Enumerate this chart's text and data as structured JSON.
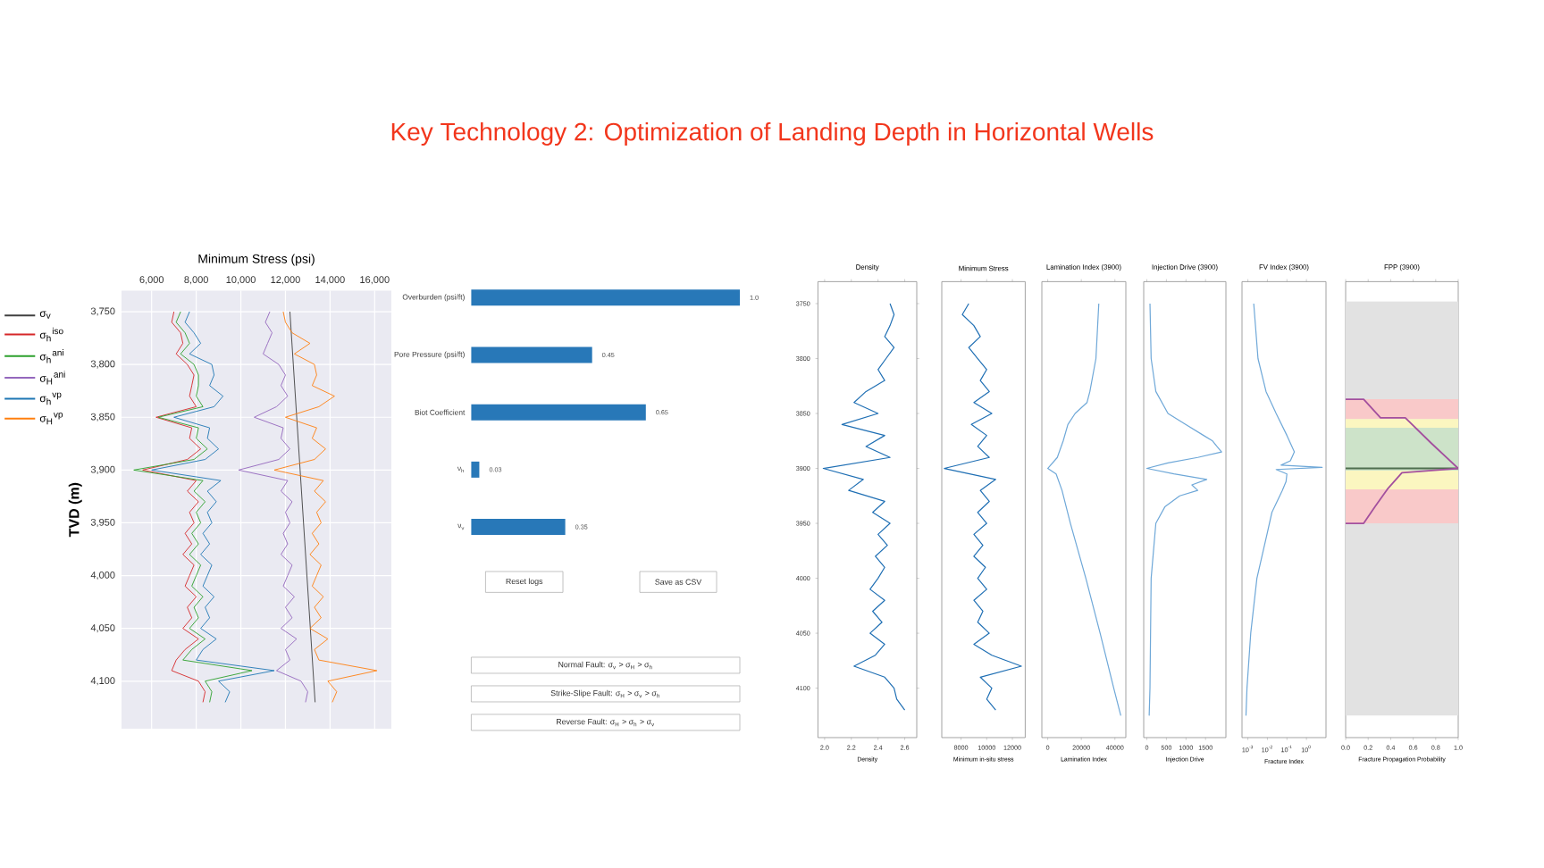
{
  "chart_data": [
    {
      "type": "other",
      "title": "Key Technology 2: Optimization of Landing Depth in Horizontal Wells"
    },
    {
      "type": "line",
      "xlabel": "Minimum Stress (psi)",
      "ylabel": "TVD (m)",
      "xlim": [
        4650,
        16750
      ],
      "ylim": [
        4145,
        3730
      ],
      "xticks": [
        {
          "value": 6000,
          "label": "6,000"
        },
        {
          "value": 8000,
          "label": "8,000"
        },
        {
          "value": 10000,
          "label": "10,000"
        },
        {
          "value": 12000,
          "label": "12,000"
        },
        {
          "value": 14000,
          "label": "14,000"
        },
        {
          "value": 16000,
          "label": "16,000"
        }
      ],
      "yticks": [
        {
          "value": 3750,
          "label": "3,750"
        },
        {
          "value": 3800,
          "label": "3,800"
        },
        {
          "value": 3850,
          "label": "3,850"
        },
        {
          "value": 3900,
          "label": "3,900"
        },
        {
          "value": 3950,
          "label": "3,950"
        },
        {
          "value": 4000,
          "label": "4,000"
        },
        {
          "value": 4050,
          "label": "4,050"
        },
        {
          "value": 4100,
          "label": "4,100"
        }
      ],
      "grid": true,
      "legend": "left",
      "series": [
        {
          "name": "σ$_{v}$",
          "color": "#404040",
          "x": [
            12200,
            13330
          ],
          "values": [
            3750,
            4120
          ]
        },
        {
          "name": "σ$_{h}$$^{iso}$",
          "color": "#d62728",
          "x": [
            7000,
            6900,
            7300,
            7400,
            7100,
            7600,
            7900,
            7800,
            7700,
            8000,
            6200,
            7800,
            7700,
            8200,
            7600,
            5600,
            8000,
            7600,
            8100,
            7700,
            7900,
            7500,
            7800,
            7400,
            7900,
            7700,
            7500,
            8000,
            7600,
            7800,
            7400,
            8100,
            7500,
            7100,
            6900,
            8100,
            8400,
            8300
          ],
          "values": [
            3750,
            3760,
            3770,
            3780,
            3790,
            3800,
            3810,
            3820,
            3830,
            3840,
            3850,
            3860,
            3870,
            3880,
            3890,
            3900,
            3910,
            3920,
            3930,
            3940,
            3950,
            3960,
            3970,
            3980,
            3990,
            4000,
            4010,
            4020,
            4030,
            4040,
            4050,
            4060,
            4070,
            4080,
            4090,
            4100,
            4110,
            4120
          ]
        },
        {
          "name": "σ$_{h}$$^{ani}$",
          "color": "#2ca02c",
          "x": [
            7300,
            7100,
            7500,
            7700,
            7300,
            7900,
            8100,
            8100,
            8000,
            8300,
            6300,
            8100,
            8000,
            8500,
            7900,
            5200,
            8300,
            7900,
            8400,
            8000,
            8200,
            7800,
            8100,
            7700,
            8200,
            8000,
            7800,
            8300,
            7900,
            8100,
            7700,
            8400,
            7800,
            7400,
            10500,
            8400,
            8700,
            8600
          ],
          "values": [
            3750,
            3760,
            3770,
            3780,
            3790,
            3800,
            3810,
            3820,
            3830,
            3840,
            3850,
            3860,
            3870,
            3880,
            3890,
            3900,
            3910,
            3920,
            3930,
            3940,
            3950,
            3960,
            3970,
            3980,
            3990,
            4000,
            4010,
            4020,
            4030,
            4040,
            4050,
            4060,
            4070,
            4080,
            4090,
            4100,
            4110,
            4120
          ]
        },
        {
          "name": "σ$_{H}$$^{ani}$",
          "color": "#9467bd",
          "x": [
            11300,
            11100,
            11400,
            11200,
            11000,
            11700,
            12000,
            11800,
            12100,
            11600,
            10600,
            11900,
            11800,
            12200,
            11700,
            9900,
            12100,
            11800,
            12300,
            12000,
            12200,
            11900,
            12100,
            11800,
            12300,
            12100,
            11900,
            12400,
            12000,
            12300,
            11800,
            12500,
            12000,
            12200,
            11600,
            12700,
            13000,
            12900
          ],
          "values": [
            3750,
            3760,
            3770,
            3780,
            3790,
            3800,
            3810,
            3820,
            3830,
            3840,
            3850,
            3860,
            3870,
            3880,
            3890,
            3900,
            3910,
            3920,
            3930,
            3940,
            3950,
            3960,
            3970,
            3980,
            3990,
            4000,
            4010,
            4020,
            4030,
            4040,
            4050,
            4060,
            4070,
            4080,
            4090,
            4100,
            4110,
            4120
          ]
        },
        {
          "name": "σ$_{h}$$^{vp}$",
          "color": "#1f77b4",
          "x": [
            7700,
            7500,
            7900,
            8200,
            7700,
            8700,
            8800,
            8600,
            9200,
            8800,
            7000,
            8600,
            8500,
            9000,
            8400,
            6000,
            9100,
            8500,
            8900,
            8500,
            8700,
            8300,
            8600,
            8200,
            8700,
            8500,
            8300,
            8800,
            8400,
            8600,
            8200,
            8900,
            8300,
            8000,
            11500,
            9000,
            9500,
            9300
          ],
          "values": [
            3750,
            3760,
            3770,
            3780,
            3790,
            3800,
            3810,
            3820,
            3830,
            3840,
            3850,
            3860,
            3870,
            3880,
            3890,
            3900,
            3910,
            3920,
            3930,
            3940,
            3950,
            3960,
            3970,
            3980,
            3990,
            4000,
            4010,
            4020,
            4030,
            4040,
            4050,
            4060,
            4070,
            4080,
            4090,
            4100,
            4110,
            4120
          ]
        },
        {
          "name": "σ$_{H}$$^{vp}$",
          "color": "#ff7f0e",
          "x": [
            11900,
            12000,
            12300,
            13100,
            12400,
            13300,
            13400,
            13200,
            14200,
            13500,
            12000,
            13400,
            13200,
            13800,
            13300,
            11500,
            13700,
            13300,
            13800,
            13400,
            13600,
            13200,
            13500,
            13100,
            13600,
            13400,
            13200,
            13700,
            13300,
            13600,
            13100,
            13900,
            13300,
            13500,
            16100,
            13900,
            14300,
            14100
          ],
          "values": [
            3750,
            3760,
            3770,
            3780,
            3790,
            3800,
            3810,
            3820,
            3830,
            3840,
            3850,
            3860,
            3870,
            3880,
            3890,
            3900,
            3910,
            3920,
            3930,
            3940,
            3950,
            3960,
            3970,
            3980,
            3990,
            4000,
            4010,
            4020,
            4030,
            4040,
            4050,
            4060,
            4070,
            4080,
            4090,
            4100,
            4110,
            4120
          ]
        }
      ]
    },
    {
      "type": "bar",
      "orientation": "horizontal",
      "categories": [
        "Overburden (psi/ft)",
        "Pore Pressure (psi/ft)",
        "Biot Coefficient",
        "ν$_{h}$",
        "ν$_{v}$"
      ],
      "series": [
        {
          "color": "#2878b8",
          "values": [
            1.0,
            0.45,
            0.65,
            0.03,
            0.35
          ],
          "value_labels": [
            "1.0",
            "0.45",
            "0.65",
            "0.03",
            "0.35"
          ]
        }
      ],
      "annotations": [
        "Reset logs",
        "Save as CSV",
        "Normal Fault: σ$_{v}$ > σ$_{H}$ > σ$_{h}$",
        "Strike-Slipe Fault: σ$_{H}$ > σ$_{v}$ > σ$_{h}$",
        "Reverse Fault: σ$_{H}$ > σ$_{h}$ > σ$_{v}$"
      ]
    },
    {
      "type": "line",
      "title": "Density",
      "xlabel": "Density",
      "xlim": [
        1.95,
        2.69
      ],
      "ylim": [
        4145,
        3730
      ],
      "xticks": [
        {
          "value": 2,
          "label": "2.0"
        },
        2.2,
        2.4,
        2.6
      ],
      "yticks": [
        3750,
        3800,
        3850,
        3900,
        3950,
        4000,
        4050,
        4100
      ],
      "series": [
        {
          "color": "#1f6fb4",
          "x": [
            2.49,
            2.52,
            2.49,
            2.45,
            2.52,
            2.46,
            2.4,
            2.45,
            2.31,
            2.22,
            2.4,
            2.13,
            2.45,
            2.31,
            2.49,
            1.99,
            2.29,
            2.18,
            2.45,
            2.36,
            2.49,
            2.4,
            2.47,
            2.38,
            2.45,
            2.4,
            2.34,
            2.45,
            2.36,
            2.43,
            2.34,
            2.45,
            2.38,
            2.22,
            2.45,
            2.52,
            2.54,
            2.6
          ],
          "values": [
            3750,
            3760,
            3770,
            3780,
            3790,
            3800,
            3810,
            3820,
            3830,
            3840,
            3850,
            3860,
            3870,
            3880,
            3890,
            3900,
            3910,
            3920,
            3930,
            3940,
            3950,
            3960,
            3970,
            3980,
            3990,
            4000,
            4010,
            4020,
            4030,
            4040,
            4050,
            4060,
            4070,
            4080,
            4090,
            4100,
            4110,
            4120
          ]
        }
      ]
    },
    {
      "type": "line",
      "title": "Minimum Stress",
      "xlabel": "Minimum in-situ stress",
      "xlim": [
        6500,
        13000
      ],
      "ylim": [
        4145,
        3730
      ],
      "tick_labels": "x",
      "xticks": [
        8000,
        10000,
        12000
      ],
      "series": [
        {
          "color": "#1f6fb4",
          "x": [
            8600,
            8100,
            9000,
            9500,
            8600,
            9300,
            10000,
            9500,
            10200,
            9000,
            10400,
            8800,
            10000,
            9300,
            10200,
            6700,
            10700,
            9500,
            10200,
            9300,
            10000,
            9000,
            9700,
            9000,
            9900,
            9300,
            10000,
            9000,
            9700,
            9300,
            10200,
            9000,
            10400,
            12700,
            9500,
            10400,
            10000,
            10700
          ],
          "values": [
            3750,
            3760,
            3770,
            3780,
            3790,
            3800,
            3810,
            3820,
            3830,
            3840,
            3850,
            3860,
            3870,
            3880,
            3890,
            3900,
            3910,
            3920,
            3930,
            3940,
            3950,
            3960,
            3970,
            3980,
            3990,
            4000,
            4010,
            4020,
            4030,
            4040,
            4050,
            4060,
            4070,
            4080,
            4090,
            4100,
            4110,
            4120
          ]
        }
      ]
    },
    {
      "type": "line",
      "title": "Lamination Index (3900)",
      "xlabel": "Lamination Index",
      "xlim": [
        -3500,
        46500
      ],
      "ylim": [
        4145,
        3730
      ],
      "tick_labels": "x",
      "xticks": [
        0,
        20000,
        40000
      ],
      "series": [
        {
          "color": "#6fa8d8",
          "x": [
            30400,
            28700,
            25100,
            23400,
            16300,
            12000,
            9200,
            5700,
            0,
            5000,
            8500,
            13500,
            22700,
            31200,
            39300,
            43500
          ],
          "values": [
            3750,
            3800,
            3830,
            3840,
            3850,
            3860,
            3875,
            3890,
            3900,
            3905,
            3920,
            3950,
            4000,
            4050,
            4100,
            4125
          ]
        }
      ]
    },
    {
      "type": "line",
      "title": "Injection Drive (3900)",
      "xlabel": "Injection Drive",
      "xlim": [
        -80,
        2020
      ],
      "ylim": [
        4145,
        3730
      ],
      "tick_labels": "x",
      "xticks": [
        0,
        500,
        1000,
        1500
      ],
      "series": [
        {
          "color": "#6fa8d8",
          "x": [
            80,
            110,
            230,
            540,
            990,
            1450,
            1680,
            1790,
            1910,
            1300,
            540,
            0,
            690,
            1530,
            1150,
            1300,
            840,
            460,
            230,
            110,
            80,
            60
          ],
          "values": [
            3750,
            3800,
            3830,
            3850,
            3860,
            3870,
            3875,
            3880,
            3885,
            3890,
            3895,
            3900,
            3905,
            3910,
            3915,
            3920,
            3925,
            3935,
            3950,
            4000,
            4100,
            4125
          ]
        }
      ]
    },
    {
      "type": "line",
      "title": "FV Index (3900)",
      "xlabel": "Fracture Index",
      "log": "x",
      "xlim": [
        0.0005,
        10
      ],
      "ylim": [
        4145,
        3730
      ],
      "tick_labels": "x",
      "xticks": [
        {
          "value": 0.001,
          "label": "10$^{-3}$"
        },
        {
          "value": 0.01,
          "label": "10$^{-2}$"
        },
        {
          "value": 0.1,
          "label": "10$^{-1}$"
        },
        {
          "value": 1,
          "label": "10$^{0}$"
        }
      ],
      "series": [
        {
          "color": "#6fa8d8",
          "x": [
            0.002,
            0.0033,
            0.0085,
            0.028,
            0.1,
            0.24,
            0.15,
            0.05,
            6.4,
            0.028,
            0.1,
            0.09,
            0.058,
            0.017,
            0.0095,
            0.0029,
            0.0014,
            0.0009,
            0.0008
          ],
          "values": [
            3750,
            3800,
            3830,
            3850,
            3870,
            3885,
            3893,
            3897,
            3899,
            3901,
            3905,
            3912,
            3920,
            3940,
            3960,
            4000,
            4050,
            4100,
            4125
          ]
        }
      ]
    },
    {
      "type": "line",
      "title": "FPP (3900)",
      "xlabel": "Fracture Propagation Probability",
      "xlim": [
        0,
        1
      ],
      "ylim": [
        4145,
        3730
      ],
      "tick_labels": "x",
      "xticks": [
        {
          "value": 0,
          "label": "0.0"
        },
        0.2,
        0.4,
        0.6,
        0.8,
        {
          "value": 1,
          "label": "1.0"
        }
      ],
      "bands": [
        {
          "axis": "y",
          "from": 3748,
          "to": 4125,
          "color": "#e2e2e2"
        },
        {
          "axis": "y",
          "from": 3837,
          "to": 3855,
          "color": "#f9c9c9"
        },
        {
          "axis": "y",
          "from": 3855,
          "to": 3863,
          "color": "#fbf6c0"
        },
        {
          "axis": "y",
          "from": 3863,
          "to": 3902,
          "color": "#cde3c9"
        },
        {
          "axis": "y",
          "from": 3902,
          "to": 3919,
          "color": "#fbf6c0"
        },
        {
          "axis": "y",
          "from": 3919,
          "to": 3950,
          "color": "#f9c9c9"
        }
      ],
      "ref_lines": [
        {
          "axis": "y",
          "value": 3900,
          "color": "#4f6f4f"
        }
      ],
      "series": [
        {
          "color": "#a3509e",
          "x": [
            0,
            0.16,
            0.31,
            0.53,
            0.76,
            1,
            0.5,
            0.37,
            0.26,
            0.16,
            0
          ],
          "values": [
            3837,
            3837,
            3854,
            3854,
            3877,
            3900,
            3904,
            3919,
            3935,
            3950,
            3950
          ]
        }
      ]
    }
  ]
}
